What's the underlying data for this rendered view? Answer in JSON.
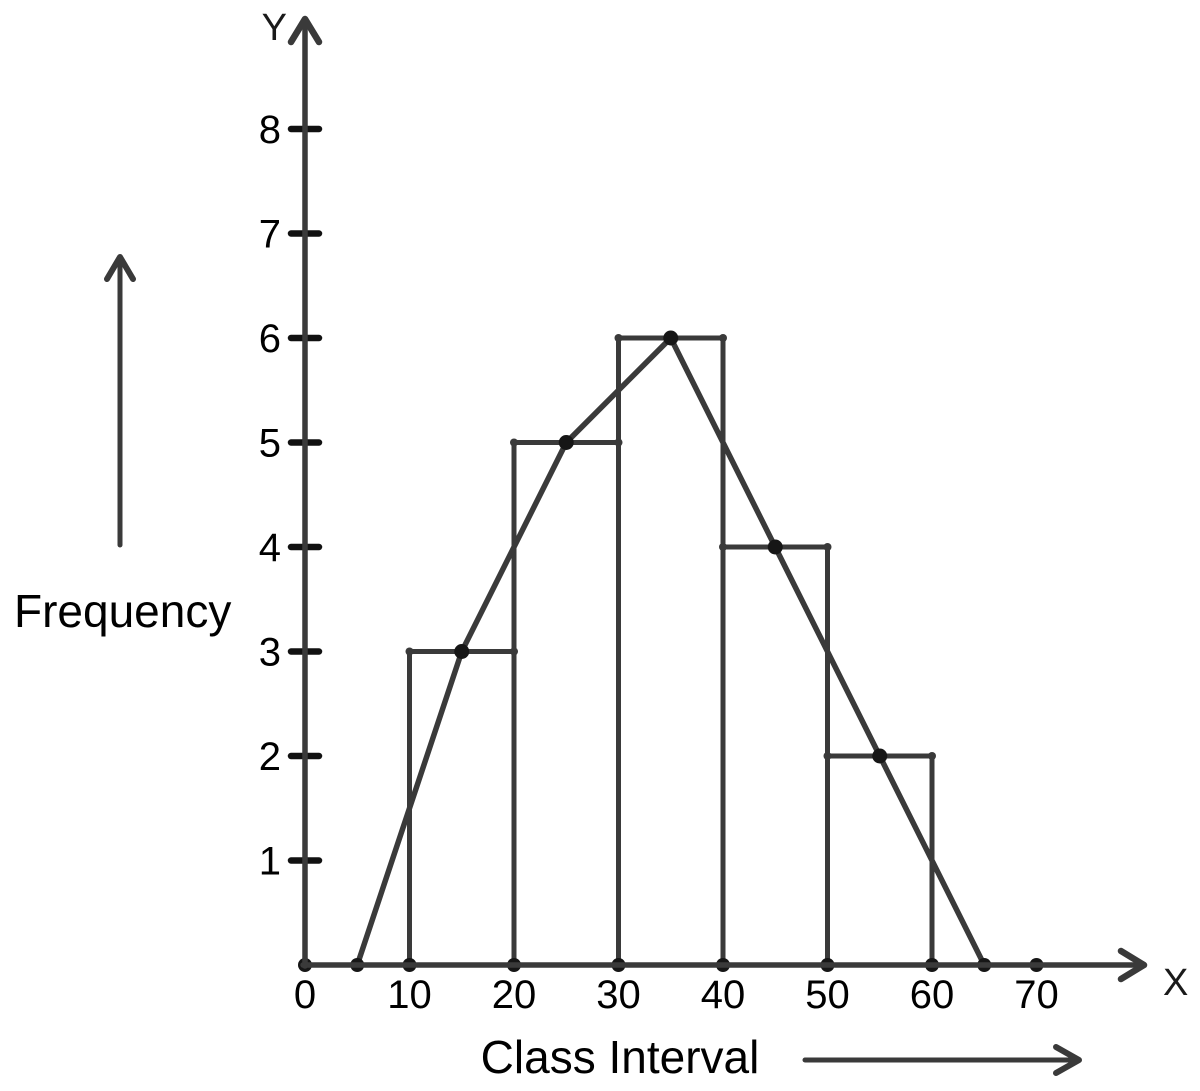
{
  "figure": {
    "y_axis_letter": "Y",
    "x_axis_letter": "X",
    "ylabel": "Frequency",
    "xlabel": "Class Interval"
  },
  "colors": {
    "line": "#3a3a3a",
    "dot": "#161616",
    "tick": "#111111",
    "text": "#000000",
    "background": "#ffffff"
  },
  "chart_data": {
    "type": "bar",
    "subtype": "histogram-with-frequency-polygon",
    "title": "",
    "xlabel": "Class Interval",
    "ylabel": "Frequency",
    "xlim": [
      0,
      80
    ],
    "ylim": [
      0,
      9
    ],
    "grid": false,
    "x_ticks": [
      0,
      10,
      20,
      30,
      40,
      50,
      60,
      70
    ],
    "y_ticks": [
      1,
      2,
      3,
      4,
      5,
      6,
      7,
      8
    ],
    "bars": [
      {
        "interval": [
          10,
          20
        ],
        "frequency": 3
      },
      {
        "interval": [
          20,
          30
        ],
        "frequency": 5
      },
      {
        "interval": [
          30,
          40
        ],
        "frequency": 6
      },
      {
        "interval": [
          40,
          50
        ],
        "frequency": 4
      },
      {
        "interval": [
          50,
          60
        ],
        "frequency": 2
      }
    ],
    "series": [
      {
        "name": "frequency-polygon",
        "points": [
          [
            5,
            0
          ],
          [
            15,
            3
          ],
          [
            25,
            5
          ],
          [
            35,
            6
          ],
          [
            45,
            4
          ],
          [
            55,
            2
          ],
          [
            65,
            0
          ]
        ]
      }
    ],
    "axis_dot_positions": [
      0,
      5,
      10,
      20,
      30,
      40,
      50,
      60,
      65,
      70
    ]
  }
}
